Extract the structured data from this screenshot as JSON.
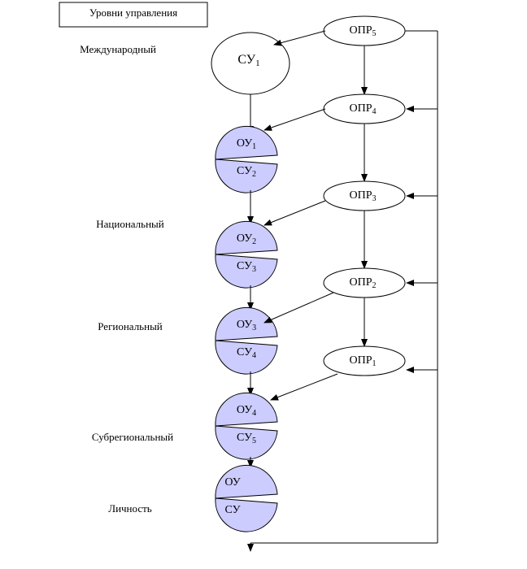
{
  "title": "Уровни управления",
  "levels": [
    "Международный",
    "Национальный",
    "Региональный",
    "Субрегиональный",
    "Личность"
  ],
  "decision_makers": [
    {
      "text": "ОПР",
      "sub": "5"
    },
    {
      "text": "ОПР",
      "sub": "4"
    },
    {
      "text": "ОПР",
      "sub": "3"
    },
    {
      "text": "ОПР",
      "sub": "2"
    },
    {
      "text": "ОПР",
      "sub": "1"
    }
  ],
  "top_system": {
    "text": "СУ",
    "sub": "1"
  },
  "blocks": [
    {
      "upper": {
        "text": "ОУ",
        "sub": "1"
      },
      "lower": {
        "text": "СУ",
        "sub": "2"
      }
    },
    {
      "upper": {
        "text": "ОУ",
        "sub": "2"
      },
      "lower": {
        "text": "СУ",
        "sub": "3"
      }
    },
    {
      "upper": {
        "text": "ОУ",
        "sub": "3"
      },
      "lower": {
        "text": "СУ",
        "sub": "4"
      }
    },
    {
      "upper": {
        "text": "ОУ",
        "sub": "4"
      },
      "lower": {
        "text": "СУ",
        "sub": "5"
      }
    },
    {
      "upper": {
        "text": "ОУ"
      },
      "lower": {
        "text": "СУ"
      }
    }
  ]
}
